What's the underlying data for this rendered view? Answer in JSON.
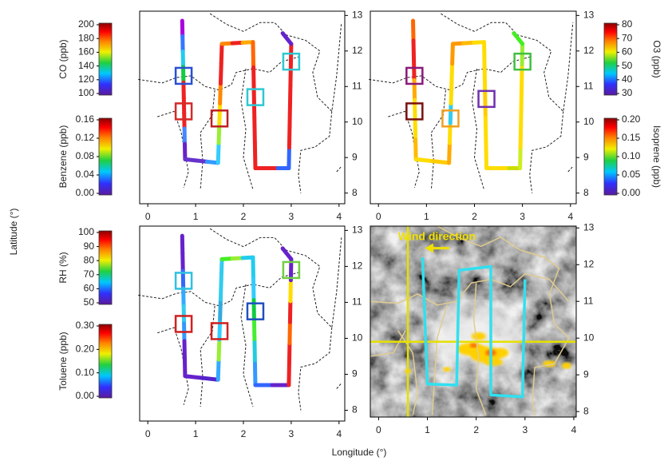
{
  "x_axis_label": "Longitude (°)",
  "y_axis_label": "Latitude (°)",
  "panels": [
    {
      "xlim": [
        -0.17,
        4.12
      ],
      "ylim": [
        7.7,
        13.12
      ],
      "xticks": [
        0,
        1,
        2,
        3,
        4
      ],
      "yticks": [
        8,
        9,
        10,
        11,
        12,
        13
      ],
      "colorbars": [
        {
          "label": "CO (ppb)",
          "lim": [
            100,
            200
          ],
          "ticks": [
            100,
            120,
            140,
            160,
            180,
            200
          ]
        },
        {
          "label": "Benzene (ppb)",
          "lim": [
            0,
            0.16
          ],
          "ticks": [
            {
              "value": 0,
              "label": "0.00"
            },
            {
              "value": 0.04,
              "label": "0.04"
            },
            {
              "value": 0.08,
              "label": "0.08"
            },
            {
              "value": 0.12,
              "label": "0.12"
            },
            {
              "value": 0.16,
              "label": "0.16"
            }
          ]
        }
      ]
    },
    {
      "xlim": [
        -0.17,
        4.12
      ],
      "ylim": [
        7.7,
        13.12
      ],
      "xticks": [
        0,
        1,
        2,
        3,
        4
      ],
      "yticks": [
        8,
        9,
        10,
        11,
        12,
        13
      ],
      "colorbars": [
        {
          "label": "O3 (ppb)",
          "lim": [
            30,
            80
          ],
          "ticks": [
            30,
            40,
            50,
            60,
            70,
            80
          ]
        },
        {
          "label": "Isoprene (ppb)",
          "lim": [
            0,
            0.2
          ],
          "ticks": [
            {
              "value": 0,
              "label": "0.00"
            },
            {
              "value": 0.05,
              "label": "0.05"
            },
            {
              "value": 0.1,
              "label": "0.10"
            },
            {
              "value": 0.15,
              "label": "0.15"
            },
            {
              "value": 0.2,
              "label": "0.20"
            }
          ]
        }
      ]
    },
    {
      "xlim": [
        -0.17,
        4.12
      ],
      "ylim": [
        7.7,
        13.12
      ],
      "xticks": [
        0,
        1,
        2,
        3,
        4
      ],
      "yticks": [
        8,
        9,
        10,
        11,
        12,
        13
      ],
      "colorbars": [
        {
          "label": "RH (%)",
          "lim": [
            50,
            100
          ],
          "ticks": [
            50,
            60,
            70,
            80,
            90,
            100
          ]
        },
        {
          "label": "Toluene (ppb)",
          "lim": [
            0,
            0.3
          ],
          "ticks": [
            {
              "value": 0,
              "label": "0.00"
            },
            {
              "value": 0.1,
              "label": "0.10"
            },
            {
              "value": 0.2,
              "label": "0.20"
            },
            {
              "value": 0.3,
              "label": "0.30"
            }
          ]
        }
      ]
    },
    {
      "xlim": [
        -0.17,
        4.05
      ],
      "ylim": [
        7.85,
        13.05
      ],
      "xticks": [
        0,
        1,
        2,
        3,
        4
      ],
      "yticks": [
        8,
        9,
        10,
        11,
        12,
        13
      ],
      "annotation": "Wind direction"
    }
  ]
}
